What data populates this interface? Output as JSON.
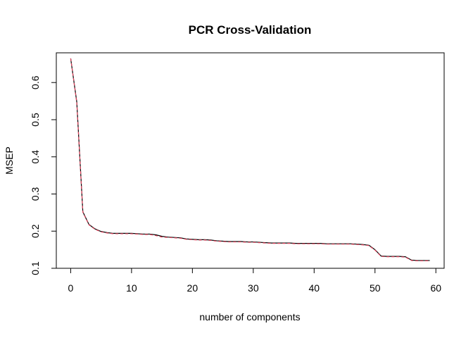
{
  "chart_data": {
    "type": "line",
    "title": "PCR Cross-Validation",
    "xlabel": "number of components",
    "ylabel": "MSEP",
    "xlim": [
      -2.36,
      61.36
    ],
    "ylim": [
      0.1,
      0.68
    ],
    "xticks": [
      0,
      10,
      20,
      30,
      40,
      50,
      60
    ],
    "xtick_labels": [
      "0",
      "10",
      "20",
      "30",
      "40",
      "50",
      "60"
    ],
    "yticks": [
      0.1,
      0.2,
      0.3,
      0.4,
      0.5,
      0.6
    ],
    "ytick_labels": [
      "0.1",
      "0.2",
      "0.3",
      "0.4",
      "0.5",
      "0.6"
    ],
    "grid": false,
    "legend": "none",
    "series": [
      {
        "color": "#000000",
        "line_style": "solid",
        "x": [
          0,
          1,
          2,
          3,
          4,
          5,
          6,
          7,
          8,
          9,
          10,
          11,
          12,
          13,
          14,
          15,
          16,
          17,
          18,
          19,
          20,
          21,
          22,
          23,
          24,
          25,
          26,
          27,
          28,
          29,
          30,
          31,
          32,
          33,
          34,
          35,
          36,
          37,
          38,
          39,
          40,
          41,
          42,
          43,
          44,
          45,
          46,
          47,
          48,
          49,
          50,
          51,
          52,
          53,
          54,
          55,
          56,
          57,
          58,
          59
        ],
        "values": [
          0.665,
          0.548,
          0.252,
          0.218,
          0.206,
          0.199,
          0.196,
          0.194,
          0.194,
          0.194,
          0.194,
          0.193,
          0.192,
          0.192,
          0.19,
          0.186,
          0.184,
          0.183,
          0.182,
          0.179,
          0.178,
          0.177,
          0.177,
          0.176,
          0.174,
          0.173,
          0.172,
          0.172,
          0.172,
          0.171,
          0.171,
          0.17,
          0.169,
          0.168,
          0.168,
          0.168,
          0.168,
          0.167,
          0.167,
          0.167,
          0.167,
          0.167,
          0.166,
          0.166,
          0.166,
          0.166,
          0.166,
          0.165,
          0.164,
          0.162,
          0.15,
          0.133,
          0.132,
          0.132,
          0.132,
          0.131,
          0.122,
          0.121,
          0.121,
          0.121
        ]
      },
      {
        "color": "#e0425c",
        "line_style": "dashed",
        "x": [
          0,
          1,
          2,
          3,
          4,
          5,
          6,
          7,
          8,
          9,
          10,
          11,
          12,
          13,
          14,
          15,
          16,
          17,
          18,
          19,
          20,
          21,
          22,
          23,
          24,
          25,
          26,
          27,
          28,
          29,
          30,
          31,
          32,
          33,
          34,
          35,
          36,
          37,
          38,
          39,
          40,
          41,
          42,
          43,
          44,
          45,
          46,
          47,
          48,
          49,
          50,
          51,
          52,
          53,
          54,
          55,
          56,
          57,
          58,
          59
        ],
        "values": [
          0.665,
          0.546,
          0.251,
          0.217,
          0.205,
          0.198,
          0.195,
          0.193,
          0.193,
          0.193,
          0.193,
          0.192,
          0.191,
          0.191,
          0.188,
          0.184,
          0.183,
          0.182,
          0.181,
          0.178,
          0.177,
          0.176,
          0.176,
          0.175,
          0.173,
          0.172,
          0.171,
          0.171,
          0.171,
          0.17,
          0.17,
          0.169,
          0.168,
          0.167,
          0.167,
          0.167,
          0.167,
          0.166,
          0.166,
          0.166,
          0.166,
          0.166,
          0.165,
          0.165,
          0.165,
          0.165,
          0.165,
          0.164,
          0.163,
          0.161,
          0.149,
          0.132,
          0.131,
          0.131,
          0.131,
          0.13,
          0.121,
          0.12,
          0.12,
          0.12
        ]
      }
    ]
  }
}
